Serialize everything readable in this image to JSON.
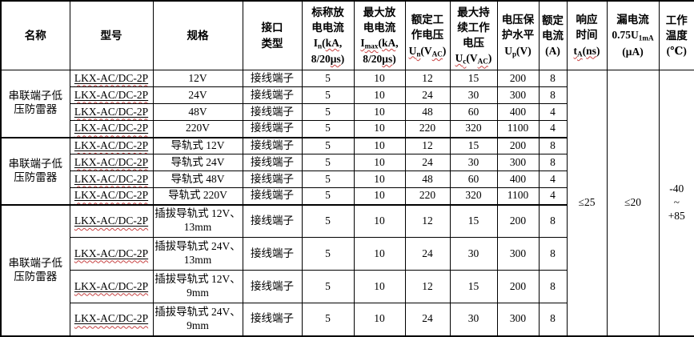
{
  "table": {
    "border_color": "#000000",
    "spellcheck_wavy_color": "#c64040",
    "columns": [
      {
        "name": "name",
        "width": 86,
        "header_lines": [
          [
            {
              "t": "名称"
            }
          ]
        ]
      },
      {
        "name": "model",
        "width": 104,
        "header_lines": [
          [
            {
              "t": "型号"
            }
          ]
        ]
      },
      {
        "name": "spec",
        "width": 112,
        "header_lines": [
          [
            {
              "t": "规格"
            }
          ]
        ]
      },
      {
        "name": "interface-type",
        "width": 74,
        "header_lines": [
          [
            {
              "t": "接口"
            }
          ],
          [
            {
              "t": "类型"
            }
          ]
        ]
      },
      {
        "name": "nominal-discharge-current",
        "width": 65,
        "header_lines": [
          [
            {
              "t": "标称放"
            }
          ],
          [
            {
              "t": "电电流"
            }
          ],
          [
            {
              "t": "I"
            },
            {
              "t": "n",
              "sub": true
            },
            {
              "t": "("
            },
            {
              "t": "kA",
              "wavy": true
            },
            {
              "t": ","
            }
          ],
          [
            {
              "t": "8/20"
            },
            {
              "t": "μs",
              "wavy": true
            },
            {
              "t": ")"
            }
          ]
        ]
      },
      {
        "name": "max-discharge-current",
        "width": 64,
        "header_lines": [
          [
            {
              "t": "最大放"
            }
          ],
          [
            {
              "t": "电电流"
            }
          ],
          [
            {
              "t": "I",
              "wavy": true
            },
            {
              "t": "max",
              "sub": true,
              "wavy": true
            },
            {
              "t": "("
            },
            {
              "t": "kA",
              "wavy": true
            },
            {
              "t": ","
            }
          ],
          [
            {
              "t": "8/20"
            },
            {
              "t": "μs",
              "wavy": true
            },
            {
              "t": ")"
            }
          ]
        ]
      },
      {
        "name": "rated-working-voltage",
        "width": 56,
        "header_lines": [
          [
            {
              "t": "额定工"
            }
          ],
          [
            {
              "t": "作电压"
            }
          ],
          [
            {
              "t": "U",
              "wavy": true
            },
            {
              "t": "n",
              "sub": true,
              "wavy": true
            },
            {
              "t": "(V"
            },
            {
              "t": "AC",
              "sub": true,
              "wavy": true
            },
            {
              "t": ")"
            }
          ]
        ]
      },
      {
        "name": "max-continuous-working-voltage",
        "width": 59,
        "header_lines": [
          [
            {
              "t": "最大持"
            }
          ],
          [
            {
              "t": "续工作"
            }
          ],
          [
            {
              "t": "电压"
            }
          ],
          [
            {
              "t": "U",
              "wavy": true
            },
            {
              "t": "c",
              "sub": true,
              "wavy": true
            },
            {
              "t": "(V"
            },
            {
              "t": "AC",
              "sub": true,
              "wavy": true
            },
            {
              "t": ")"
            }
          ]
        ]
      },
      {
        "name": "voltage-protection-level",
        "width": 52,
        "header_lines": [
          [
            {
              "t": "电压保"
            }
          ],
          [
            {
              "t": "护水平"
            }
          ],
          [
            {
              "t": "U"
            },
            {
              "t": "p",
              "sub": true
            },
            {
              "t": "(V)"
            }
          ]
        ]
      },
      {
        "name": "rated-current",
        "width": 35,
        "header_lines": [
          [
            {
              "t": "额定"
            }
          ],
          [
            {
              "t": "电流"
            }
          ],
          [
            {
              "t": "(A)"
            }
          ]
        ]
      },
      {
        "name": "response-time",
        "width": 50,
        "header_lines": [
          [
            {
              "t": "响应"
            }
          ],
          [
            {
              "t": "时间"
            }
          ],
          [
            {
              "t": "t",
              "wavy": true
            },
            {
              "t": "A",
              "sub": true,
              "wavy": true
            },
            {
              "t": "("
            },
            {
              "t": "ns",
              "wavy": true
            },
            {
              "t": ")"
            }
          ]
        ]
      },
      {
        "name": "leakage-current",
        "width": 65,
        "header_lines": [
          [
            {
              "t": "漏电流"
            }
          ],
          [
            {
              "t": "0.75U"
            },
            {
              "t": "1mA",
              "sub": true
            }
          ],
          [
            {
              "t": "(μA)"
            }
          ]
        ]
      },
      {
        "name": "operating-temperature",
        "width": 45,
        "header_lines": [
          [
            {
              "t": "工作"
            }
          ],
          [
            {
              "t": "温度"
            }
          ],
          [
            {
              "t": "(℃)"
            }
          ]
        ]
      }
    ],
    "groups": [
      {
        "name_lines": [
          "串联端子低",
          "压防雷器"
        ],
        "row_height_class": "h21",
        "rows": [
          {
            "model": "LKX-AC/DC-2P",
            "spec_lines": [
              "12V"
            ],
            "interface": "接线端子",
            "values": [
              "5",
              "10",
              "12",
              "15",
              "200",
              "8"
            ]
          },
          {
            "model": "LKX-AC/DC-2P",
            "spec_lines": [
              "24V"
            ],
            "interface": "接线端子",
            "values": [
              "5",
              "10",
              "24",
              "30",
              "300",
              "8"
            ]
          },
          {
            "model": "LKX-AC/DC-2P",
            "spec_lines": [
              "48V"
            ],
            "interface": "接线端子",
            "values": [
              "5",
              "10",
              "48",
              "60",
              "400",
              "4"
            ]
          },
          {
            "model": "LKX-AC/DC-2P",
            "spec_lines": [
              "220V"
            ],
            "interface": "接线端子",
            "values": [
              "5",
              "10",
              "220",
              "320",
              "1100",
              "4"
            ]
          }
        ]
      },
      {
        "name_lines": [
          "串联端子低",
          "压防雷器"
        ],
        "row_height_class": "h21",
        "rows": [
          {
            "model": "LKX-AC/DC-2P",
            "spec_lines": [
              "导轨式 12V"
            ],
            "interface": "接线端子",
            "values": [
              "5",
              "10",
              "12",
              "15",
              "200",
              "8"
            ]
          },
          {
            "model": "LKX-AC/DC-2P",
            "spec_lines": [
              "导轨式 24V"
            ],
            "interface": "接线端子",
            "values": [
              "5",
              "10",
              "24",
              "30",
              "300",
              "8"
            ]
          },
          {
            "model": "LKX-AC/DC-2P",
            "spec_lines": [
              "导轨式 48V"
            ],
            "interface": "接线端子",
            "values": [
              "5",
              "10",
              "48",
              "60",
              "400",
              "4"
            ]
          },
          {
            "model": "LKX-AC/DC-2P",
            "spec_lines": [
              "导轨式 220V"
            ],
            "interface": "接线端子",
            "values": [
              "5",
              "10",
              "220",
              "320",
              "1100",
              "4"
            ]
          }
        ]
      },
      {
        "name_lines": [
          "串联端子低",
          "压防雷器"
        ],
        "row_height_class": "h41",
        "rows": [
          {
            "model": "LKX-AC/DC-2P",
            "spec_lines": [
              "插拔导轨式 12V、",
              "13mm"
            ],
            "interface": "接线端子",
            "values": [
              "5",
              "10",
              "12",
              "15",
              "200",
              "8"
            ]
          },
          {
            "model": "LKX-AC/DC-2P",
            "spec_lines": [
              "插拔导轨式 24V、",
              "13mm"
            ],
            "interface": "接线端子",
            "values": [
              "5",
              "10",
              "24",
              "30",
              "300",
              "8"
            ]
          },
          {
            "model": "LKX-AC/DC-2P",
            "spec_lines": [
              "插拔导轨式 12V、",
              "9mm"
            ],
            "interface": "接线端子",
            "values": [
              "5",
              "10",
              "12",
              "15",
              "200",
              "8"
            ]
          },
          {
            "model": "LKX-AC/DC-2P",
            "spec_lines": [
              "插拔导轨式 24V、",
              "9mm"
            ],
            "interface": "接线端子",
            "values": [
              "5",
              "10",
              "24",
              "30",
              "300",
              "8"
            ]
          }
        ]
      }
    ],
    "merged_cells": {
      "response_time": "≤25",
      "leakage_current": "≤20",
      "temperature_lines": [
        "-40",
        "~",
        "+85"
      ]
    }
  }
}
